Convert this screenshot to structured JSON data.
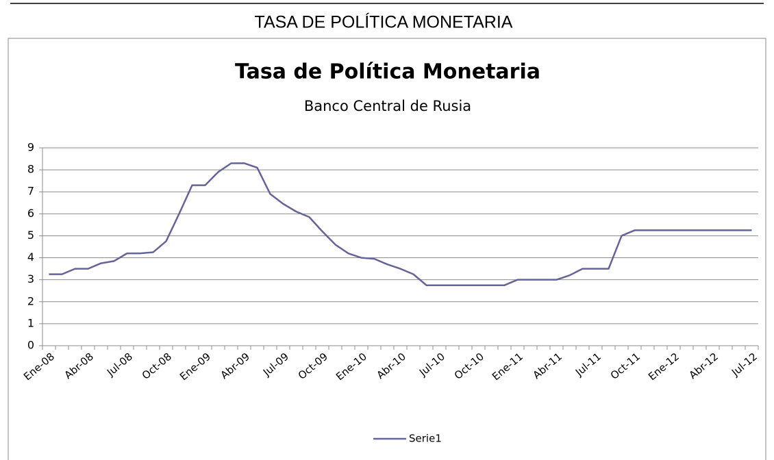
{
  "header": {
    "title": "TASA DE POLÍTICA MONETARIA"
  },
  "chart_data": {
    "type": "line",
    "title": "Tasa de Política Monetaria",
    "subtitle": "Banco Central de Rusia",
    "categories": [
      "Ene-08",
      null,
      null,
      "Abr-08",
      null,
      null,
      "Jul-08",
      null,
      null,
      "Oct-08",
      null,
      null,
      "Ene-09",
      null,
      null,
      "Abr-09",
      null,
      null,
      "Jul-09",
      null,
      null,
      "Oct-09",
      null,
      null,
      "Ene-10",
      null,
      null,
      "Abr-10",
      null,
      null,
      "Jul-10",
      null,
      null,
      "Oct-10",
      null,
      null,
      "Ene-11",
      null,
      null,
      "Abr-11",
      null,
      null,
      "Jul-11",
      null,
      null,
      "Oct-11",
      null,
      null,
      "Ene-12",
      null,
      null,
      "Abr-12",
      null,
      null,
      "Jul-12"
    ],
    "series": [
      {
        "name": "Serie1",
        "color": "#64649a",
        "values": [
          3.25,
          3.25,
          3.5,
          3.5,
          3.75,
          3.85,
          4.2,
          4.2,
          4.25,
          4.75,
          6.0,
          7.3,
          7.3,
          7.9,
          8.3,
          8.3,
          8.1,
          6.9,
          6.45,
          6.1,
          5.85,
          5.2,
          4.6,
          4.2,
          4.0,
          3.95,
          3.7,
          3.5,
          3.25,
          2.75,
          2.75,
          2.75,
          2.75,
          2.75,
          2.75,
          2.75,
          3.0,
          3.0,
          3.0,
          3.0,
          3.2,
          3.5,
          3.5,
          3.5,
          5.0,
          5.25,
          5.25,
          5.25,
          5.25,
          5.25,
          5.25,
          5.25,
          5.25,
          5.25,
          5.25
        ]
      }
    ],
    "ylim": [
      0,
      9
    ],
    "yticks": [
      0,
      1,
      2,
      3,
      4,
      5,
      6,
      7,
      8,
      9
    ],
    "grid": true,
    "legend": "bottom"
  }
}
